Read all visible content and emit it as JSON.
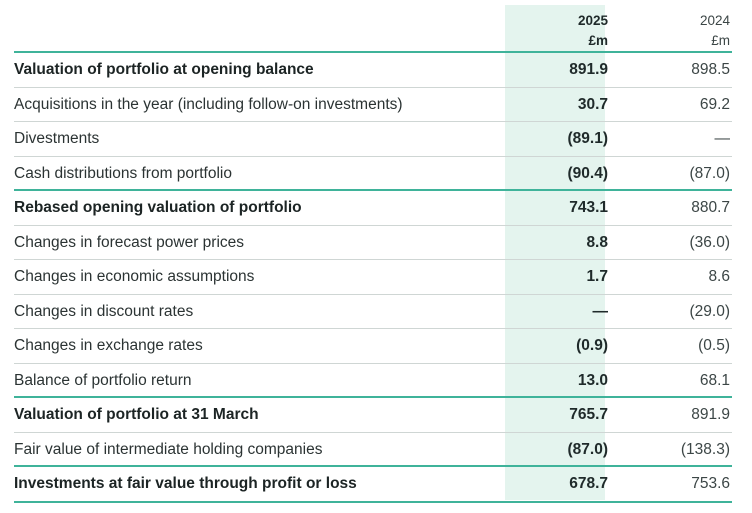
{
  "header": {
    "year_current": "2025",
    "unit_current": "£m",
    "year_prior": "2024",
    "unit_prior": "£m"
  },
  "rows": [
    {
      "label": "Valuation of portfolio at opening balance",
      "v2025": "891.9",
      "v2024": "898.5"
    },
    {
      "label": "Acquisitions in the year (including follow-on investments)",
      "v2025": "30.7",
      "v2024": "69.2"
    },
    {
      "label": "Divestments",
      "v2025": "(89.1)",
      "v2024": "—"
    },
    {
      "label": "Cash distributions from portfolio",
      "v2025": "(90.4)",
      "v2024": "(87.0)"
    },
    {
      "label": "Rebased opening valuation of portfolio",
      "v2025": "743.1",
      "v2024": "880.7"
    },
    {
      "label": "Changes in forecast power prices",
      "v2025": "8.8",
      "v2024": "(36.0)"
    },
    {
      "label": "Changes in economic assumptions",
      "v2025": "1.7",
      "v2024": "8.6"
    },
    {
      "label": "Changes in discount rates",
      "v2025": "—",
      "v2024": "(29.0)"
    },
    {
      "label": "Changes in exchange rates",
      "v2025": "(0.9)",
      "v2024": "(0.5)"
    },
    {
      "label": "Balance of portfolio return",
      "v2025": "13.0",
      "v2024": "68.1"
    },
    {
      "label": "Valuation of portfolio at 31 March",
      "v2025": "765.7",
      "v2024": "891.9"
    },
    {
      "label": "Fair value of intermediate holding companies",
      "v2025": "(87.0)",
      "v2024": "(138.3)"
    },
    {
      "label": "Investments at fair value through profit or loss",
      "v2025": "678.7",
      "v2024": "753.6"
    }
  ]
}
